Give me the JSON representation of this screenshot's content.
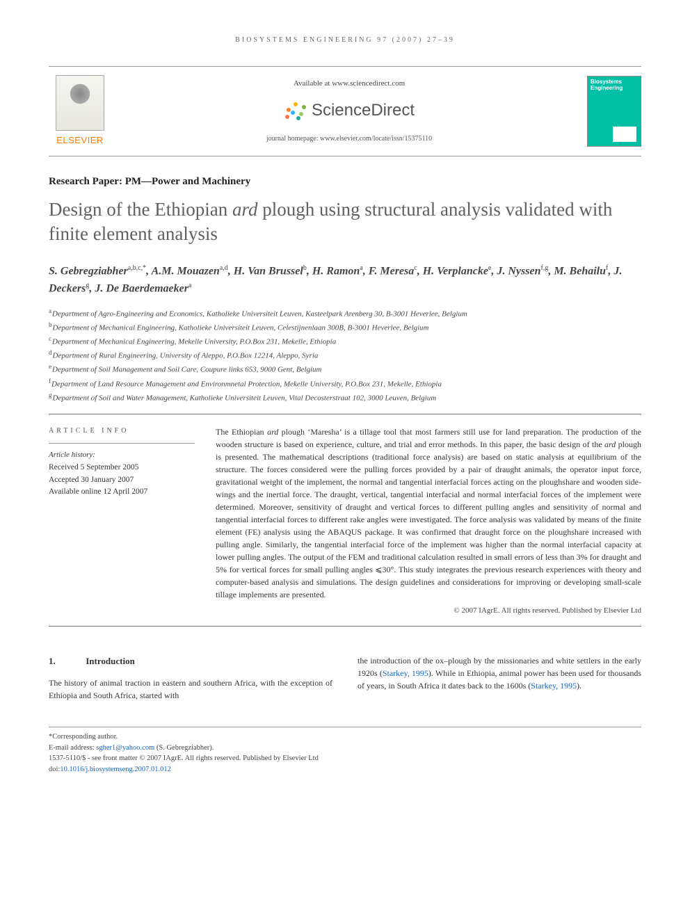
{
  "running_head": "BIOSYSTEMS ENGINEERING 97 (2007) 27–39",
  "header": {
    "available_at": "Available at www.sciencedirect.com",
    "sd_brand": "ScienceDirect",
    "journal_homepage": "journal homepage: www.elsevier.com/locate/issn/15375110",
    "elsevier_wordmark": "ELSEVIER",
    "journal_cover_name": "Biosystems Engineering",
    "sd_dot_colors": [
      "#f58220",
      "#ffb400",
      "#7cb342",
      "#29b6f6",
      "#9ccc65",
      "#ff7043",
      "#26a69a"
    ]
  },
  "section_label": "Research Paper: PM—Power and Machinery",
  "title_html": "Design of the Ethiopian <em>ard</em> plough using structural analysis validated with finite element analysis",
  "authors_html": "S. Gebregziabher<sup>a,b,c,*</sup>, A.M. Mouazen<sup>a,d</sup>, H. Van Brussel<sup>b</sup>, H. Ramon<sup>a</sup>, F. Meresa<sup>c</sup>, H. Verplancke<sup>e</sup>, J. Nyssen<sup>f,g</sup>, M. Behailu<sup>f</sup>, J. Deckers<sup>g</sup>, J. De Baerdemaeker<sup>a</sup>",
  "affiliations": [
    {
      "sup": "a",
      "text": "Department of Agro-Engineering and Economics, Katholieke Universiteit Leuven, Kasteelpark Arenberg 30, B-3001 Heverlee, Belgium"
    },
    {
      "sup": "b",
      "text": "Department of Mechanical Engineering, Katholieke Universiteit Leuven, Celestijnenlaan 300B, B-3001 Heverlee, Belgium"
    },
    {
      "sup": "c",
      "text": "Department of Mechanical Engineering, Mekelle University, P.O.Box 231, Mekelle, Ethiopia"
    },
    {
      "sup": "d",
      "text": "Department of Rural Engineering, University of Aleppo, P.O.Box 12214, Aleppo, Syria"
    },
    {
      "sup": "e",
      "text": "Department of Soil Management and Soil Care, Coupure links 653, 9000 Gent, Belgium"
    },
    {
      "sup": "f",
      "text": "Department of Land Resource Management and Environmnetal Protection, Mekelle University, P.O.Box 231, Mekelle, Ethiopia"
    },
    {
      "sup": "g",
      "text": "Department of Soil and Water Management, Katholieke Universiteit Leuven, Vital Decosterstraat 102, 3000 Leuven, Belgium"
    }
  ],
  "article_info": {
    "head": "ARTICLE INFO",
    "history_head": "Article history:",
    "lines": [
      "Received 5 September 2005",
      "Accepted 30 January 2007",
      "Available online 12 April 2007"
    ]
  },
  "abstract_html": "The Ethiopian <em>ard</em> plough ‘Maresha’ is a tillage tool that most farmers still use for land preparation. The production of the wooden structure is based on experience, culture, and trial and error methods. In this paper, the basic design of the <em>ard</em> plough is presented. The mathematical descriptions (traditional force analysis) are based on static analysis at equilibrium of the structure. The forces considered were the pulling forces provided by a pair of draught animals, the operator input force, gravitational weight of the implement, the normal and tangential interfacial forces acting on the ploughshare and wooden side-wings and the inertial force. The draught, vertical, tangential interfacial and normal interfacial forces of the implement were determined. Moreover, sensitivity of draught and vertical forces to different pulling angles and sensitivity of normal and tangential interfacial forces to different rake angles were investigated. The force analysis was validated by means of the finite element (FE) analysis using the ABAQUS package. It was confirmed that draught force on the ploughshare increased with pulling angle. Similarly, the tangential interfacial force of the implement was higher than the normal interfacial capacity at lower pulling angles. The output of the FEM and traditional calculation resulted in small errors of less than 3% for draught and 5% for vertical forces for small pulling angles ⩽30°. This study integrates the previous research experiences with theory and computer-based analysis and simulations. The design guidelines and considerations for improving or developing small-scale tillage implements are presented.",
  "copyright": "© 2007 IAgrE. All rights reserved. Published by Elsevier Ltd",
  "body": {
    "section_number": "1.",
    "section_title": "Introduction",
    "col1": "The history of animal traction in eastern and southern Africa, with the exception of Ethiopia and South Africa, started with",
    "col2_pre": "the introduction of the ox–plough by the missionaries and white settlers in the early 1920s (",
    "col2_cite1": "Starkey, 1995",
    "col2_mid": "). While in Ethiopia, animal power has been used for thousands of years, in South Africa it dates back to the 1600s (",
    "col2_cite2": "Starkey, 1995",
    "col2_post": ")."
  },
  "footnotes": {
    "corr": "*Corresponding author.",
    "email_label": "E-mail address: ",
    "email": "sgher1@yahoo.com",
    "email_paren": " (S. Gebregziabher).",
    "front_matter": "1537-5110/$ - see front matter © 2007 IAgrE. All rights reserved. Published by Elsevier Ltd",
    "doi_label": "doi:",
    "doi": "10.1016/j.biosystemseng.2007.01.012"
  },
  "colors": {
    "elsevier_orange": "#ff7a00",
    "link_blue": "#1565c0",
    "title_gray": "#606060",
    "cover_teal": "#00bfa5"
  }
}
